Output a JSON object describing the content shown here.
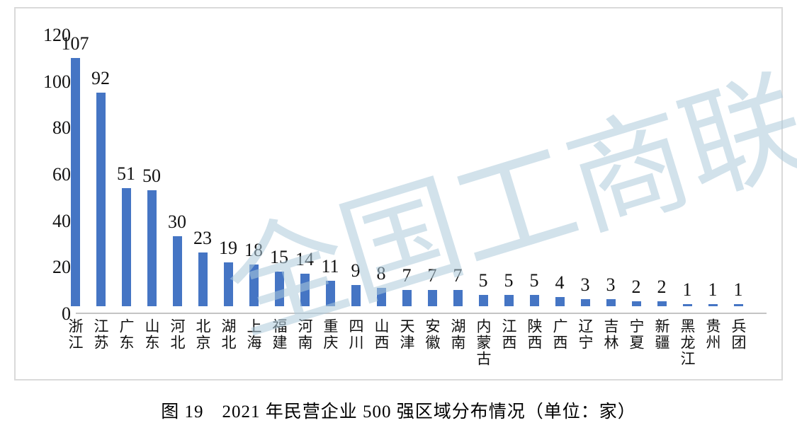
{
  "chart_data": {
    "type": "bar",
    "title": "图 19　2021 年民营企业 500 强区域分布情况（单位：家）",
    "categories": [
      "浙江",
      "江苏",
      "广东",
      "山东",
      "河北",
      "北京",
      "湖北",
      "上海",
      "福建",
      "河南",
      "重庆",
      "四川",
      "山西",
      "天津",
      "安徽",
      "湖南",
      "内蒙古",
      "江西",
      "陕西",
      "广西",
      "辽宁",
      "吉林",
      "宁夏",
      "新疆",
      "黑龙江",
      "贵州",
      "兵团"
    ],
    "values": [
      107,
      92,
      51,
      50,
      30,
      23,
      19,
      18,
      15,
      14,
      11,
      9,
      8,
      7,
      7,
      7,
      5,
      5,
      5,
      4,
      3,
      3,
      2,
      2,
      1,
      1,
      1
    ],
    "xlabel": "",
    "ylabel": "",
    "ylim": [
      0,
      120
    ],
    "yticks": [
      120,
      100,
      80,
      60,
      40,
      20,
      0
    ],
    "grid": false,
    "legend": "none",
    "bar_color": "#4575c4",
    "axis_line_color": "#c4c4c4",
    "watermark": "全国工商联",
    "watermark_color": "#aecbdc"
  }
}
